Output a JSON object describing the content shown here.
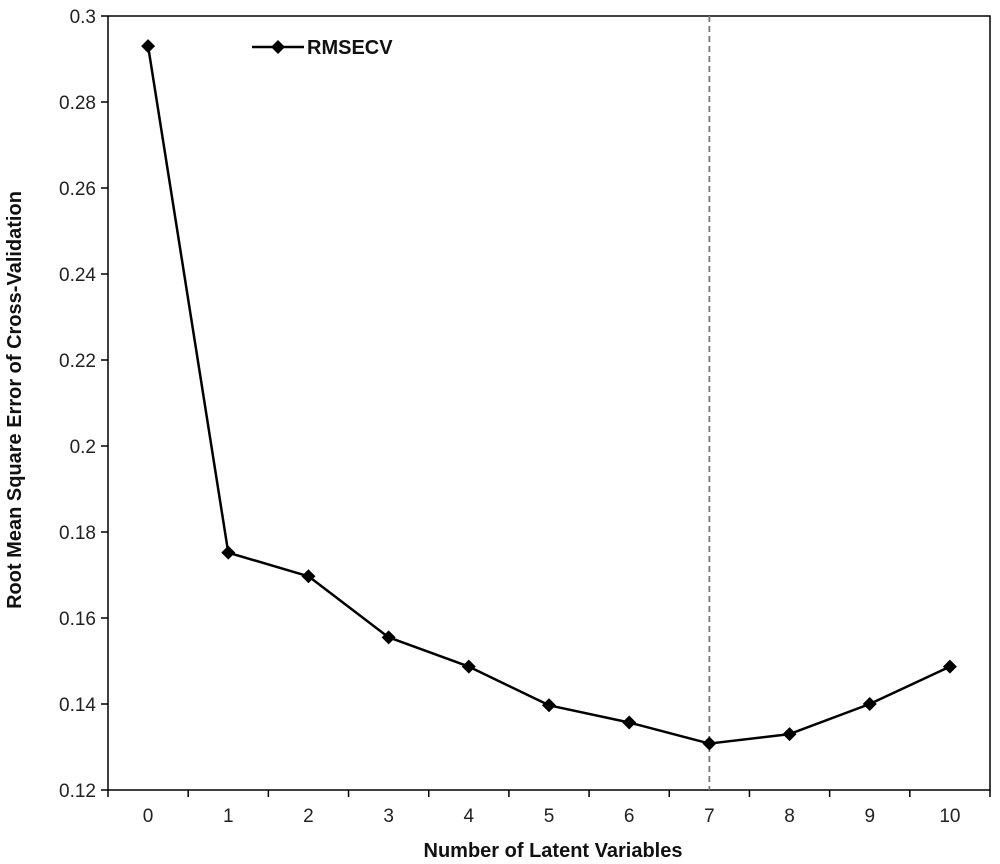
{
  "chart_data": {
    "type": "line",
    "xlabel": "Number of Latent Variables",
    "ylabel": "Root Mean Square Error of Cross-Validation",
    "x": [
      0,
      1,
      2,
      3,
      4,
      5,
      6,
      7,
      8,
      9,
      10
    ],
    "xticks": [
      "0",
      "1",
      "2",
      "3",
      "4",
      "5",
      "6",
      "7",
      "8",
      "9",
      "10"
    ],
    "yticks": [
      "0.12",
      "0.14",
      "0.16",
      "0.18",
      "0.2",
      "0.22",
      "0.24",
      "0.26",
      "0.28",
      "0.3"
    ],
    "ylim": [
      0.12,
      0.3
    ],
    "series": [
      {
        "name": "RMSECV",
        "values": [
          0.293,
          0.1752,
          0.1697,
          0.1555,
          0.1487,
          0.1397,
          0.1357,
          0.1308,
          0.133,
          0.14,
          0.1487
        ],
        "marker": "diamond",
        "color": "#000000"
      }
    ],
    "vertical_reference_line": {
      "x": 7,
      "style": "dashed",
      "color": "#777777"
    },
    "legend": {
      "position": "top-left"
    },
    "grid": false
  }
}
